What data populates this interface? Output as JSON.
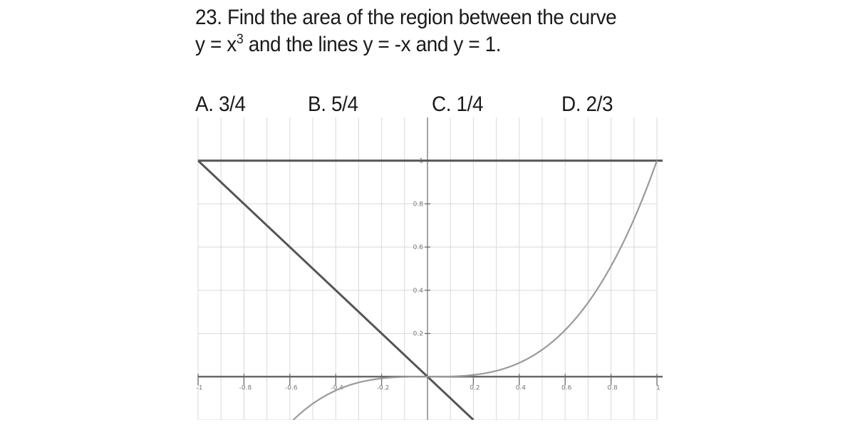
{
  "problem": {
    "line1": "23. Find the area of the region between the curve",
    "line2_prefix": "y = x",
    "line2_exponent": "3",
    "line2_suffix": " and the lines y = -x and y = 1."
  },
  "choices": [
    {
      "label": "A. 3/4"
    },
    {
      "label": "B. 5/4"
    },
    {
      "label": "C. 1/4"
    },
    {
      "label": "D. 2/3"
    }
  ],
  "graph": {
    "curves": [
      "y = x^3",
      "y = -x",
      "y = 1"
    ],
    "x_range": [
      -1,
      1
    ],
    "y_range": [
      -0.2,
      1.2
    ],
    "grid": true,
    "x_tick_values": [
      -1,
      -0.8,
      -0.6,
      -0.4,
      -0.2,
      0.2,
      0.4,
      0.6,
      0.8,
      1
    ],
    "x_tick_labels": [
      "-1",
      "-0.8",
      "-0.6",
      "-0.4",
      "-0.2",
      "0.2",
      "0.4",
      "0.6",
      "0.8",
      "1"
    ],
    "y_tick_values": [
      0.2,
      0.4,
      0.6,
      0.8,
      1
    ],
    "y_tick_labels": [
      "0.2",
      "0.4",
      "0.6",
      "0.8",
      "1"
    ],
    "colors": {
      "grid": "#d9d9d9",
      "axis": "#6a6a6a",
      "lines": "#555555",
      "curve": "#9a9a9a"
    }
  }
}
